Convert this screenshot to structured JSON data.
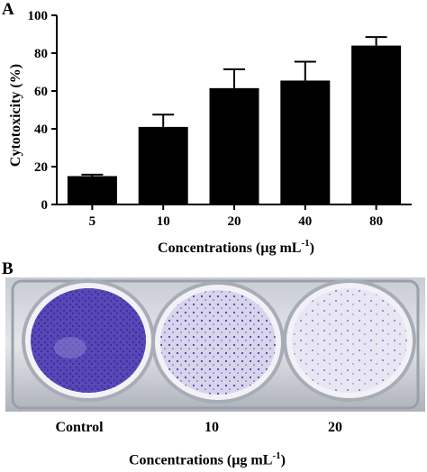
{
  "panels": {
    "a_letter": "A",
    "b_letter": "B"
  },
  "chart_data": {
    "type": "bar",
    "categories": [
      "5",
      "10",
      "20",
      "40",
      "80"
    ],
    "values": [
      15,
      41,
      61.5,
      65.5,
      84
    ],
    "error_upper": [
      15.8,
      47.5,
      71.5,
      75.5,
      88.5
    ],
    "ylabel": "Cytotoxicity (%)",
    "xlabel_main": "Concentrations (µg mL",
    "xlabel_sup": "-1",
    "xlabel_close": ")",
    "ylim": [
      0,
      100
    ],
    "yticks": [
      "0",
      "20",
      "40",
      "60",
      "80",
      "100"
    ],
    "bar_color": "#000000",
    "grid": false
  },
  "photo": {
    "labels": [
      "Control",
      "10",
      "20"
    ],
    "xlabel_main": "Concentrations (µg mL",
    "xlabel_sup": "-1",
    "xlabel_close": ")",
    "stain_color": "#5848b8"
  }
}
